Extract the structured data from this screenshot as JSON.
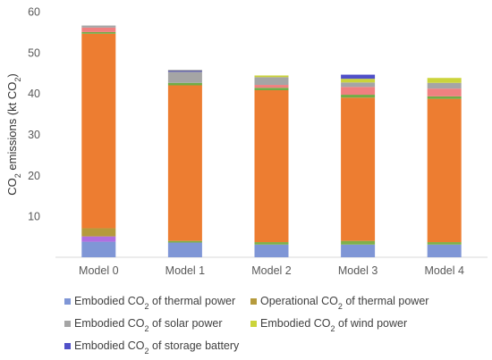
{
  "chart_data": {
    "type": "bar",
    "stacked": true,
    "categories": [
      "Model 0",
      "Model 1",
      "Model 2",
      "Model 3",
      "Model 4"
    ],
    "ylabel": {
      "prefix": "CO",
      "sub": "2",
      "middle": " emissions (kt CO",
      "sub2": "2",
      "suffix": ")"
    },
    "ylim": [
      0,
      60
    ],
    "yticks": [
      10,
      20,
      30,
      40,
      50,
      60
    ],
    "grid": false,
    "legend_position": "bottom",
    "series": [
      {
        "legend": {
          "pre": "Embodied CO",
          "sub": "2",
          "post": " of thermal power"
        },
        "color": "#7f96d6",
        "values": [
          3.8,
          3.6,
          3.1,
          3.1,
          3.1
        ]
      },
      {
        "legend": null,
        "color": "#b06ee0",
        "values": [
          1.3,
          0,
          0,
          0,
          0
        ]
      },
      {
        "legend": {
          "pre": "Operational CO",
          "sub": "2",
          "post": " of thermal power"
        },
        "color": "#b59a3c",
        "values": [
          2.0,
          0,
          0,
          0,
          0
        ]
      },
      {
        "legend": null,
        "color": "#7fb04a",
        "values": [
          0,
          0.4,
          0.6,
          0.9,
          0.6
        ]
      },
      {
        "legend": null,
        "color": "#ed7d31",
        "values": [
          47.5,
          38.0,
          37.1,
          35.0,
          35.0
        ]
      },
      {
        "legend": null,
        "color": "#70ad47",
        "values": [
          0.4,
          0.6,
          0.6,
          0.7,
          0.6
        ]
      },
      {
        "legend": null,
        "color": "#f08080",
        "values": [
          1.1,
          0,
          0.7,
          1.9,
          1.9
        ]
      },
      {
        "legend": {
          "pre": "Embodied CO",
          "sub": "2",
          "post": " of solar power"
        },
        "color": "#a5a5a5",
        "values": [
          0.5,
          2.7,
          1.9,
          1.1,
          1.4
        ]
      },
      {
        "legend": {
          "pre": "Embodied CO",
          "sub": "2",
          "post": " of wind power"
        },
        "color": "#cbd43a",
        "values": [
          0,
          0,
          0.4,
          0.9,
          1.2
        ]
      },
      {
        "legend": {
          "pre": "Embodied CO",
          "sub": "2",
          "post": " of storage battery"
        },
        "color": "#5050c8",
        "values": [
          0,
          0.2,
          0,
          1.0,
          0
        ]
      },
      {
        "legend": null,
        "color": "#6b6b6b",
        "values": [
          0,
          0.2,
          0,
          0,
          0
        ]
      }
    ]
  }
}
